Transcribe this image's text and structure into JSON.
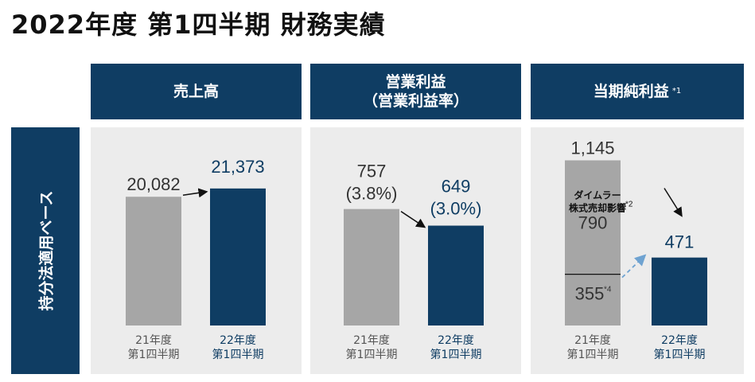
{
  "title": "2022年度 第1四半期 財務実績",
  "headers": [
    {
      "line1": "売上高",
      "line2": "",
      "note": ""
    },
    {
      "line1": "営業利益",
      "line2": "（営業利益率）",
      "note": ""
    },
    {
      "line1": "当期純利益",
      "line2": "",
      "note": "*1"
    }
  ],
  "side_label": "持分法適用ベース",
  "colors": {
    "navy": "#0f3d63",
    "gray_bar": "#a6a6a6",
    "panel_bg": "#ececec",
    "arrow_light": "#6fa3d1"
  },
  "chart_data": [
    {
      "type": "bar",
      "title": "売上高",
      "categories": [
        [
          "21年度",
          "第1四半期"
        ],
        [
          "22年度",
          "第1四半期"
        ]
      ],
      "values": [
        20082,
        21373
      ],
      "labels": [
        "20,082",
        "21,373"
      ],
      "ylim": [
        0,
        36000
      ]
    },
    {
      "type": "bar",
      "title": "営業利益（営業利益率）",
      "categories": [
        [
          "21年度",
          "第1四半期"
        ],
        [
          "22年度",
          "第1四半期"
        ]
      ],
      "values": [
        757,
        649
      ],
      "labels": [
        "757",
        "649"
      ],
      "margins": [
        "(3.8%)",
        "(3.0%)"
      ],
      "ylim": [
        0,
        1500
      ]
    },
    {
      "type": "bar",
      "title": "当期純利益",
      "categories": [
        [
          "21年度",
          "第1四半期"
        ],
        [
          "22年度",
          "第1四半期"
        ]
      ],
      "values": [
        1145,
        471
      ],
      "labels": [
        "1,145",
        "471"
      ],
      "stack_21": [
        {
          "value": 355,
          "label": "355",
          "note": "*4"
        },
        {
          "value": 790,
          "label": "790",
          "annotation": [
            "ダイムラー",
            "株式売却影響"
          ],
          "note": "*2"
        }
      ],
      "ylim": [
        0,
        1600
      ]
    }
  ]
}
